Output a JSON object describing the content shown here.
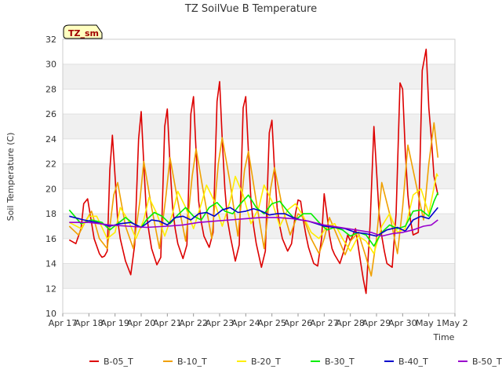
{
  "chart_data": {
    "type": "line",
    "title": "TZ SoilVue B Temperature",
    "xlabel": "Time",
    "ylabel": "Soil Temperature (C)",
    "ylim": [
      10,
      32
    ],
    "xlim": [
      0,
      15
    ],
    "yticks": [
      10,
      12,
      14,
      16,
      18,
      20,
      22,
      24,
      26,
      28,
      30,
      32
    ],
    "xticks": [
      "Apr 17",
      "Apr 18",
      "Apr 19",
      "Apr 20",
      "Apr 21",
      "Apr 22",
      "Apr 23",
      "Apr 24",
      "Apr 25",
      "Apr 26",
      "Apr 27",
      "Apr 28",
      "Apr 29",
      "Apr 30",
      "May 1",
      "May 2"
    ],
    "site_label": "TZ_sm",
    "legend_position": "bottom",
    "series": [
      {
        "name": "B-05_T",
        "color": "#dd0000",
        "x": [
          0.25,
          0.5,
          0.7,
          0.8,
          0.95,
          1.2,
          1.4,
          1.5,
          1.6,
          1.7,
          1.8,
          1.9,
          2.0,
          2.1,
          2.2,
          2.4,
          2.6,
          2.75,
          2.9,
          3.0,
          3.1,
          3.2,
          3.3,
          3.4,
          3.6,
          3.75,
          3.9,
          4.0,
          4.1,
          4.2,
          4.3,
          4.4,
          4.6,
          4.75,
          4.9,
          5.0,
          5.1,
          5.2,
          5.3,
          5.4,
          5.6,
          5.75,
          5.9,
          6.0,
          6.1,
          6.2,
          6.3,
          6.4,
          6.6,
          6.75,
          6.9,
          7.0,
          7.1,
          7.2,
          7.3,
          7.4,
          7.6,
          7.75,
          7.9,
          8.0,
          8.1,
          8.2,
          8.3,
          8.4,
          8.6,
          8.75,
          8.9,
          9.0,
          9.1,
          9.2,
          9.3,
          9.4,
          9.6,
          9.75,
          9.9,
          10.0,
          10.1,
          10.2,
          10.3,
          10.4,
          10.6,
          10.75,
          10.9,
          11.0,
          11.2,
          11.4,
          11.5,
          11.6,
          11.75,
          11.9,
          12.0,
          12.1,
          12.2,
          12.3,
          12.4,
          12.6,
          12.75,
          12.9,
          13.0,
          13.1,
          13.2,
          13.3,
          13.4,
          13.6,
          13.75,
          13.9,
          14.0,
          14.1,
          14.2,
          14.35
        ],
        "values": [
          15.9,
          15.6,
          16.8,
          18.8,
          19.2,
          16.0,
          14.8,
          14.5,
          14.6,
          15.0,
          21.5,
          24.3,
          21.0,
          17.5,
          16.0,
          14.2,
          13.1,
          15.5,
          24.0,
          26.2,
          22.0,
          18.0,
          16.5,
          15.2,
          13.9,
          14.5,
          25.0,
          26.4,
          22.0,
          18.5,
          16.8,
          15.6,
          14.4,
          15.5,
          26.0,
          27.4,
          23.0,
          19.0,
          17.3,
          16.2,
          15.3,
          16.5,
          27.0,
          28.6,
          24.0,
          20.0,
          17.5,
          16.3,
          14.2,
          15.5,
          26.5,
          27.4,
          23.0,
          19.0,
          17.0,
          15.6,
          13.7,
          15.0,
          24.5,
          25.5,
          21.5,
          18.5,
          17.0,
          16.0,
          15.0,
          15.6,
          18.0,
          19.1,
          19.0,
          17.5,
          16.3,
          15.3,
          14.0,
          13.8,
          16.0,
          19.6,
          18.0,
          16.3,
          15.2,
          14.7,
          14.0,
          15.0,
          16.3,
          15.8,
          16.8,
          14.0,
          12.7,
          11.6,
          17.0,
          25.0,
          21.5,
          18.0,
          16.2,
          15.0,
          14.0,
          13.7,
          18.0,
          28.5,
          28.0,
          23.0,
          19.5,
          17.5,
          16.3,
          16.5,
          29.5,
          31.2,
          26.5,
          24.0,
          21.0,
          19.5
        ]
      },
      {
        "name": "B-10_T",
        "color": "#f0a000",
        "x": [
          0.25,
          0.6,
          0.9,
          1.1,
          1.4,
          1.7,
          1.95,
          2.1,
          2.4,
          2.7,
          2.95,
          3.1,
          3.4,
          3.7,
          3.95,
          4.1,
          4.4,
          4.7,
          4.95,
          5.1,
          5.4,
          5.7,
          5.95,
          6.1,
          6.4,
          6.7,
          6.95,
          7.1,
          7.4,
          7.7,
          7.95,
          8.1,
          8.4,
          8.7,
          9.0,
          9.2,
          9.5,
          9.8,
          10.0,
          10.2,
          10.5,
          10.8,
          11.0,
          11.3,
          11.6,
          11.8,
          12.0,
          12.2,
          12.5,
          12.8,
          13.0,
          13.2,
          13.5,
          13.8,
          14.0,
          14.2,
          14.35
        ],
        "values": [
          17.0,
          16.3,
          17.5,
          18.2,
          16.0,
          15.2,
          19.5,
          20.5,
          17.0,
          15.2,
          19.0,
          22.2,
          18.5,
          15.2,
          19.5,
          22.5,
          19.0,
          15.8,
          21.0,
          23.2,
          19.5,
          16.0,
          22.0,
          24.1,
          20.5,
          16.2,
          21.5,
          23.0,
          19.0,
          15.2,
          20.0,
          21.7,
          18.5,
          16.3,
          18.0,
          17.7,
          16.0,
          14.8,
          16.0,
          17.7,
          16.2,
          14.7,
          15.8,
          16.5,
          14.5,
          13.0,
          16.0,
          20.5,
          18.0,
          14.8,
          18.5,
          23.5,
          20.5,
          17.5,
          22.0,
          25.3,
          22.5
        ]
      },
      {
        "name": "B-20_T",
        "color": "#ffee00",
        "x": [
          0.25,
          0.7,
          1.0,
          1.3,
          1.7,
          2.0,
          2.2,
          2.5,
          2.8,
          3.1,
          3.3,
          3.6,
          3.9,
          4.2,
          4.4,
          4.7,
          5.0,
          5.3,
          5.5,
          5.8,
          6.1,
          6.4,
          6.6,
          6.9,
          7.2,
          7.5,
          7.7,
          8.0,
          8.3,
          8.6,
          8.9,
          9.2,
          9.5,
          9.8,
          10.1,
          10.4,
          10.7,
          11.0,
          11.3,
          11.6,
          11.9,
          12.2,
          12.5,
          12.8,
          13.1,
          13.4,
          13.7,
          14.0,
          14.3,
          14.35
        ],
        "values": [
          17.3,
          16.8,
          17.8,
          17.8,
          16.0,
          16.5,
          18.5,
          17.5,
          16.0,
          17.5,
          19.3,
          18.0,
          16.2,
          18.0,
          19.8,
          18.5,
          16.8,
          18.8,
          20.3,
          19.0,
          17.0,
          19.0,
          21.0,
          19.5,
          17.2,
          18.5,
          20.3,
          19.0,
          17.0,
          18.3,
          18.8,
          17.8,
          16.5,
          16.0,
          17.0,
          17.2,
          16.0,
          15.0,
          16.2,
          15.8,
          14.8,
          17.0,
          18.0,
          16.5,
          16.8,
          19.5,
          20.0,
          18.0,
          21.2,
          21.0
        ]
      },
      {
        "name": "B-30_T",
        "color": "#00ee00",
        "x": [
          0.25,
          0.7,
          1.1,
          1.5,
          1.8,
          2.1,
          2.4,
          2.7,
          3.0,
          3.2,
          3.5,
          3.8,
          4.1,
          4.4,
          4.7,
          5.0,
          5.3,
          5.6,
          5.9,
          6.2,
          6.5,
          6.8,
          7.1,
          7.4,
          7.7,
          8.0,
          8.3,
          8.6,
          8.9,
          9.2,
          9.5,
          9.8,
          10.1,
          10.4,
          10.7,
          11.0,
          11.3,
          11.6,
          11.9,
          12.2,
          12.5,
          12.8,
          13.1,
          13.4,
          13.7,
          14.0,
          14.2,
          14.35
        ],
        "values": [
          18.3,
          17.2,
          17.5,
          17.3,
          16.7,
          17.2,
          17.7,
          17.2,
          16.9,
          17.5,
          18.1,
          17.8,
          17.2,
          17.9,
          18.5,
          17.8,
          17.5,
          18.5,
          18.9,
          18.2,
          18.0,
          18.8,
          19.5,
          18.5,
          18.0,
          18.8,
          19.0,
          18.2,
          17.5,
          18.0,
          18.0,
          17.3,
          16.7,
          16.9,
          16.7,
          16.2,
          16.5,
          16.3,
          15.4,
          16.5,
          17.1,
          16.8,
          17.0,
          18.2,
          18.3,
          17.8,
          19.0,
          19.7
        ]
      },
      {
        "name": "B-40_T",
        "color": "#0000cc",
        "x": [
          0.25,
          0.8,
          1.3,
          1.8,
          2.2,
          2.6,
          3.0,
          3.4,
          3.7,
          4.0,
          4.3,
          4.6,
          4.9,
          5.2,
          5.5,
          5.8,
          6.1,
          6.4,
          6.7,
          7.0,
          7.3,
          7.6,
          7.9,
          8.2,
          8.5,
          8.8,
          9.1,
          9.4,
          9.7,
          10.0,
          10.4,
          10.8,
          11.2,
          11.6,
          12.0,
          12.4,
          12.8,
          13.1,
          13.4,
          13.7,
          14.0,
          14.35
        ],
        "values": [
          17.8,
          17.5,
          17.3,
          17.0,
          17.2,
          17.3,
          16.9,
          17.5,
          17.4,
          17.1,
          17.7,
          17.8,
          17.5,
          18.0,
          18.1,
          17.8,
          18.3,
          18.5,
          18.1,
          18.2,
          18.4,
          18.2,
          17.9,
          18.0,
          18.0,
          17.7,
          17.5,
          17.4,
          17.2,
          17.0,
          16.9,
          16.8,
          16.5,
          16.4,
          16.2,
          16.7,
          16.9,
          16.6,
          17.5,
          17.8,
          17.6,
          18.5
        ]
      },
      {
        "name": "B-50_T",
        "color": "#9900cc",
        "x": [
          0.25,
          1.0,
          1.8,
          2.5,
          3.2,
          4.0,
          4.6,
          5.2,
          5.8,
          6.4,
          7.0,
          7.6,
          8.2,
          8.8,
          9.4,
          10.0,
          10.6,
          11.2,
          11.8,
          12.2,
          12.6,
          13.0,
          13.4,
          13.8,
          14.1,
          14.35
        ],
        "values": [
          17.3,
          17.3,
          17.1,
          17.0,
          16.9,
          17.0,
          17.1,
          17.3,
          17.4,
          17.5,
          17.6,
          17.7,
          17.7,
          17.6,
          17.4,
          17.1,
          16.9,
          16.7,
          16.5,
          16.2,
          16.4,
          16.5,
          16.7,
          17.0,
          17.1,
          17.5
        ]
      }
    ]
  }
}
